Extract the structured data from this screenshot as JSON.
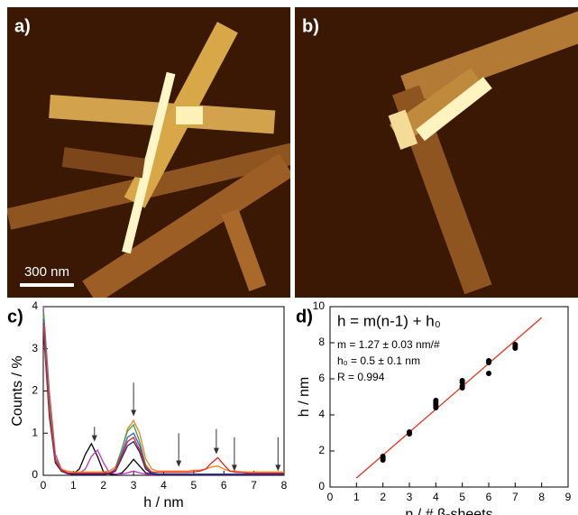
{
  "panel_labels": [
    "a)",
    "b)",
    "c)",
    "d)"
  ],
  "scale_bar": "300 nm",
  "chart_data": [
    {
      "type": "line",
      "xlabel": "h / nm",
      "ylabel": "Counts / %",
      "xlim": [
        0,
        8
      ],
      "ylim": [
        0,
        4
      ],
      "xticks": [
        0,
        1,
        2,
        3,
        4,
        5,
        6,
        7,
        8
      ],
      "yticks": [
        0,
        1,
        2,
        3,
        4
      ],
      "x": [
        0,
        0.2,
        0.4,
        0.6,
        0.8,
        1,
        1.2,
        1.4,
        1.6,
        1.8,
        2,
        2.2,
        2.4,
        2.6,
        2.8,
        3,
        3.2,
        3.4,
        3.6,
        3.8,
        4,
        4.2,
        4.4,
        4.6,
        4.8,
        5,
        5.2,
        5.4,
        5.6,
        5.8,
        6,
        6.2,
        6.4,
        6.6,
        6.8,
        7,
        7.2,
        7.4,
        7.6,
        7.8,
        8
      ],
      "series": [
        {
          "color": "#000000",
          "values": [
            3.6,
            1.6,
            0.35,
            0.12,
            0.05,
            0.04,
            0.15,
            0.5,
            0.75,
            0.45,
            0.08,
            0.03,
            0.02,
            0.05,
            0.2,
            0.38,
            0.22,
            0.06,
            0.03,
            0.02,
            0.02,
            0.02,
            0.02,
            0.02,
            0.02,
            0.02,
            0.02,
            0.02,
            0.02,
            0.02,
            0.02,
            0.02,
            0.02,
            0.02,
            0.02,
            0.02,
            0.02,
            0.02,
            0.02,
            0.02,
            0.02
          ]
        },
        {
          "color": "#c030c0",
          "values": [
            4.0,
            2.0,
            0.5,
            0.15,
            0.06,
            0.04,
            0.05,
            0.15,
            0.45,
            0.6,
            0.3,
            0.06,
            0.03,
            0.03,
            0.06,
            0.1,
            0.06,
            0.03,
            0.02,
            0.02,
            0.02,
            0.02,
            0.02,
            0.02,
            0.02,
            0.02,
            0.02,
            0.02,
            0.02,
            0.02,
            0.02,
            0.02,
            0.02,
            0.02,
            0.02,
            0.02,
            0.02,
            0.02,
            0.02,
            0.02,
            0.02
          ]
        },
        {
          "color": "#f08020",
          "values": [
            3.8,
            1.8,
            0.4,
            0.15,
            0.1,
            0.08,
            0.08,
            0.08,
            0.08,
            0.08,
            0.08,
            0.1,
            0.2,
            0.6,
            1.1,
            1.3,
            1.0,
            0.4,
            0.15,
            0.1,
            0.1,
            0.1,
            0.1,
            0.1,
            0.1,
            0.12,
            0.12,
            0.15,
            0.2,
            0.22,
            0.15,
            0.1,
            0.1,
            0.08,
            0.08,
            0.08,
            0.08,
            0.08,
            0.08,
            0.08,
            0.08
          ]
        },
        {
          "color": "#40a040",
          "values": [
            3.9,
            1.7,
            0.4,
            0.1,
            0.04,
            0.03,
            0.03,
            0.03,
            0.03,
            0.03,
            0.03,
            0.05,
            0.15,
            0.6,
            1.05,
            1.2,
            0.8,
            0.25,
            0.06,
            0.03,
            0.03,
            0.03,
            0.03,
            0.03,
            0.03,
            0.03,
            0.03,
            0.03,
            0.03,
            0.03,
            0.03,
            0.03,
            0.03,
            0.03,
            0.03,
            0.03,
            0.03,
            0.03,
            0.03,
            0.03,
            0.03
          ]
        },
        {
          "color": "#3060e0",
          "values": [
            3.7,
            1.5,
            0.3,
            0.1,
            0.04,
            0.03,
            0.03,
            0.03,
            0.03,
            0.03,
            0.03,
            0.05,
            0.15,
            0.5,
            0.9,
            1.0,
            0.7,
            0.2,
            0.05,
            0.03,
            0.03,
            0.03,
            0.03,
            0.03,
            0.03,
            0.03,
            0.03,
            0.03,
            0.03,
            0.03,
            0.03,
            0.03,
            0.03,
            0.03,
            0.03,
            0.03,
            0.03,
            0.03,
            0.03,
            0.03,
            0.03
          ]
        },
        {
          "color": "#202080",
          "values": [
            3.5,
            1.4,
            0.3,
            0.1,
            0.04,
            0.02,
            0.02,
            0.02,
            0.02,
            0.02,
            0.02,
            0.04,
            0.1,
            0.4,
            0.7,
            0.8,
            0.55,
            0.15,
            0.04,
            0.02,
            0.02,
            0.02,
            0.02,
            0.02,
            0.02,
            0.02,
            0.02,
            0.02,
            0.02,
            0.02,
            0.02,
            0.02,
            0.02,
            0.02,
            0.02,
            0.02,
            0.02,
            0.02,
            0.02,
            0.02,
            0.02
          ]
        },
        {
          "color": "#e02020",
          "values": [
            3.6,
            1.5,
            0.35,
            0.12,
            0.06,
            0.05,
            0.05,
            0.05,
            0.05,
            0.05,
            0.05,
            0.06,
            0.12,
            0.45,
            0.8,
            0.9,
            0.6,
            0.2,
            0.08,
            0.07,
            0.07,
            0.07,
            0.07,
            0.07,
            0.07,
            0.08,
            0.1,
            0.15,
            0.3,
            0.42,
            0.25,
            0.1,
            0.07,
            0.07,
            0.05,
            0.05,
            0.05,
            0.05,
            0.05,
            0.05,
            0.05
          ]
        }
      ],
      "arrows": [
        {
          "x": 1.7,
          "from": 1.15,
          "to": 0.8
        },
        {
          "x": 3.0,
          "from": 2.2,
          "to": 1.4
        },
        {
          "x": 4.5,
          "from": 1.0,
          "to": 0.2
        },
        {
          "x": 5.75,
          "from": 1.1,
          "to": 0.5
        },
        {
          "x": 6.35,
          "from": 0.9,
          "to": 0.1
        },
        {
          "x": 7.8,
          "from": 0.9,
          "to": 0.1
        }
      ]
    },
    {
      "type": "scatter",
      "xlabel": "n / # β-sheets",
      "ylabel": "h / nm",
      "xlim": [
        0,
        9
      ],
      "ylim": [
        0,
        10
      ],
      "xticks": [
        0,
        1,
        2,
        3,
        4,
        5,
        6,
        7,
        8,
        9
      ],
      "yticks": [
        0,
        2,
        4,
        6,
        8,
        10
      ],
      "color": "#000000",
      "x": [
        2,
        2,
        2,
        3,
        3,
        3,
        4,
        4,
        4,
        4,
        4,
        5,
        5,
        5,
        5,
        6,
        6,
        6,
        7,
        7,
        7
      ],
      "values": [
        1.5,
        1.7,
        1.6,
        2.95,
        3.0,
        3.05,
        4.4,
        4.5,
        4.6,
        4.7,
        4.8,
        5.5,
        5.6,
        5.8,
        5.9,
        6.3,
        6.9,
        7.0,
        7.7,
        7.8,
        7.9
      ],
      "fit": {
        "x": [
          1,
          8
        ],
        "values": [
          0.5,
          9.39
        ],
        "color": "#e8301c"
      },
      "annotations": [
        "h = m(n-1) + h₀",
        "m = 1.27 ± 0.03 nm/#",
        "h₀ = 0.5 ± 0.1 nm",
        "R = 0.994"
      ]
    }
  ]
}
